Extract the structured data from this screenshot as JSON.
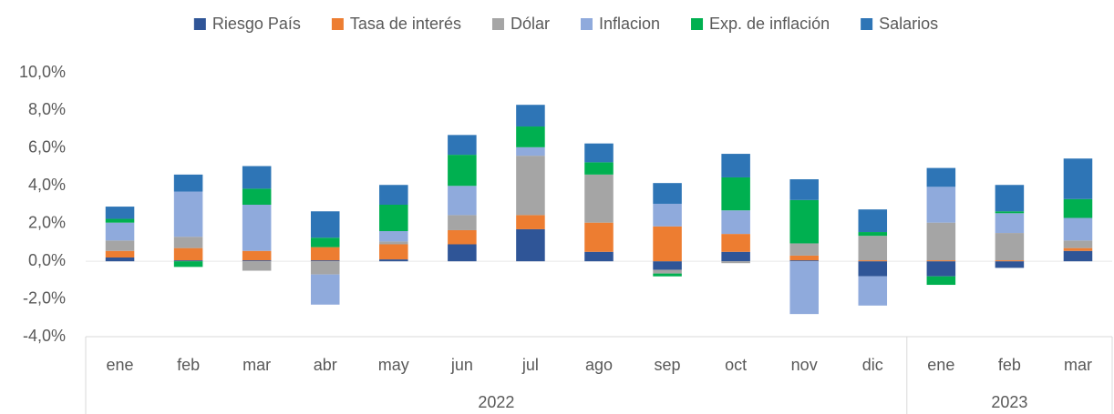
{
  "chart_data": {
    "type": "stacked-bar",
    "groups": [
      {
        "name": "2022",
        "categories": [
          "ene",
          "feb",
          "mar",
          "abr",
          "may",
          "jun",
          "jul",
          "ago",
          "sep",
          "oct",
          "nov",
          "dic"
        ]
      },
      {
        "name": "2023",
        "categories": [
          "ene",
          "feb",
          "mar"
        ]
      }
    ],
    "series": [
      {
        "name": "Riesgo País",
        "color": "#2f5597",
        "values": [
          0.2,
          0.05,
          0.05,
          0.05,
          0.1,
          0.9,
          1.7,
          0.5,
          -0.45,
          0.5,
          0.05,
          -0.8,
          -0.8,
          -0.35,
          0.55
        ]
      },
      {
        "name": "Tasa de interés",
        "color": "#ed7d31",
        "values": [
          0.35,
          0.65,
          0.5,
          0.7,
          0.8,
          0.75,
          0.75,
          1.55,
          1.85,
          0.95,
          0.25,
          0.05,
          0.05,
          0.05,
          0.15
        ]
      },
      {
        "name": "Dólar",
        "color": "#a5a5a5",
        "values": [
          0.55,
          0.6,
          -0.5,
          -0.7,
          0.15,
          0.8,
          3.15,
          2.55,
          -0.2,
          -0.1,
          0.65,
          1.3,
          2.0,
          1.45,
          0.4
        ]
      },
      {
        "name": "Inflacion",
        "color": "#8faadc",
        "values": [
          0.95,
          2.4,
          2.45,
          -1.6,
          0.55,
          1.55,
          0.45,
          0.0,
          1.2,
          1.25,
          -2.8,
          -1.55,
          1.9,
          1.05,
          1.2
        ]
      },
      {
        "name": "Exp. de inflación",
        "color": "#00b050",
        "values": [
          0.2,
          -0.3,
          0.85,
          0.5,
          1.4,
          1.65,
          1.1,
          0.65,
          -0.15,
          1.75,
          2.3,
          0.2,
          -0.45,
          0.1,
          1.0
        ]
      },
      {
        "name": "Salarios",
        "color": "#2e75b6",
        "values": [
          0.65,
          0.9,
          1.2,
          1.4,
          1.05,
          1.05,
          1.15,
          1.0,
          1.1,
          1.25,
          1.1,
          1.2,
          1.0,
          1.4,
          2.15
        ]
      }
    ],
    "ylim": [
      -4,
      10
    ],
    "yticks": [
      {
        "value": -4,
        "label": "-4,0%"
      },
      {
        "value": -2,
        "label": "-2,0%"
      },
      {
        "value": 0,
        "label": "0,0%"
      },
      {
        "value": 2,
        "label": "2,0%"
      },
      {
        "value": 4,
        "label": "4,0%"
      },
      {
        "value": 6,
        "label": "6,0%"
      },
      {
        "value": 8,
        "label": "8,0%"
      },
      {
        "value": 10,
        "label": "10,0%"
      }
    ],
    "legend": "top"
  }
}
